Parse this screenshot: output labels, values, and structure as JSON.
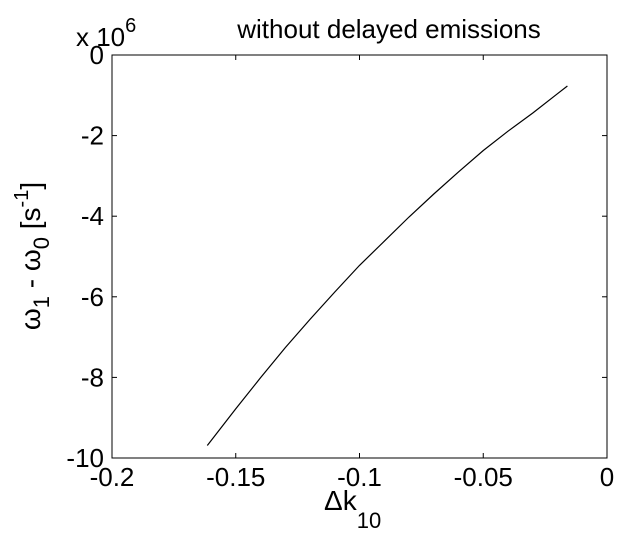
{
  "chart_data": {
    "type": "line",
    "title": "without delayed emissions",
    "xlabel": "Δk",
    "xlabel_sub": "10",
    "ylabel": {
      "omega1": "ω",
      "sub1": "1",
      "minus": " - ω",
      "sub0": "0",
      "bracket_open": " [s",
      "sup": "-1",
      "bracket_close": "]"
    },
    "y_multiplier": {
      "base": "x 10",
      "exponent": "6"
    },
    "xlim": [
      -0.2,
      0
    ],
    "ylim": [
      -10,
      0
    ],
    "xticks": [
      -0.2,
      -0.15,
      -0.1,
      -0.05,
      0
    ],
    "xtick_labels": [
      "-0.2",
      "-0.15",
      "-0.1",
      "-0.05",
      "0"
    ],
    "yticks": [
      0,
      -2,
      -4,
      -6,
      -8,
      -10
    ],
    "ytick_labels": [
      "0",
      "-2",
      "-4",
      "-6",
      "-8",
      "-10"
    ],
    "grid": false,
    "series": [
      {
        "color": "#000000",
        "x": [
          -0.1615,
          -0.15,
          -0.14,
          -0.13,
          -0.12,
          -0.11,
          -0.1,
          -0.09,
          -0.08,
          -0.07,
          -0.06,
          -0.05,
          -0.04,
          -0.03,
          -0.02,
          -0.016
        ],
        "y": [
          -9.69,
          -8.78,
          -8.01,
          -7.26,
          -6.56,
          -5.88,
          -5.22,
          -4.62,
          -4.02,
          -3.45,
          -2.9,
          -2.37,
          -1.89,
          -1.44,
          -0.96,
          -0.77
        ]
      }
    ]
  }
}
